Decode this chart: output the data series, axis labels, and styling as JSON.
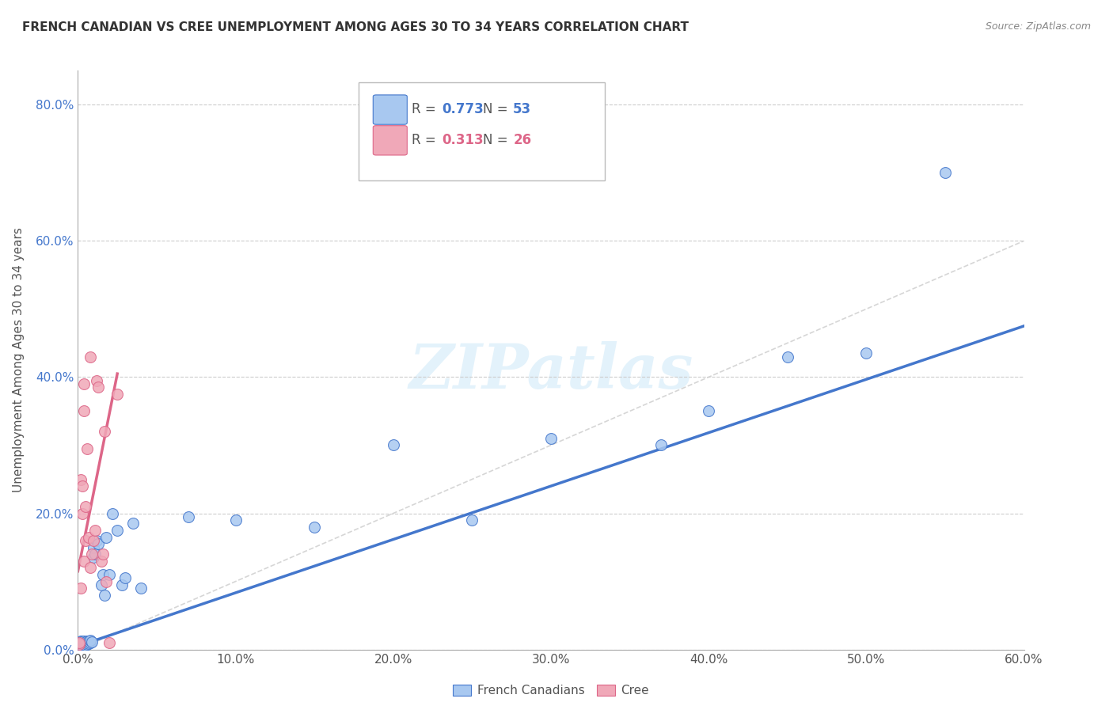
{
  "title": "FRENCH CANADIAN VS CREE UNEMPLOYMENT AMONG AGES 30 TO 34 YEARS CORRELATION CHART",
  "source": "Source: ZipAtlas.com",
  "ylabel": "Unemployment Among Ages 30 to 34 years",
  "watermark": "ZIPatlas",
  "fc_color": "#a8c8f0",
  "cree_color": "#f0a8b8",
  "fc_line_color": "#4477cc",
  "cree_line_color": "#dd6688",
  "diagonal_color": "#cccccc",
  "french_canadians_x": [
    0.001,
    0.001,
    0.001,
    0.002,
    0.002,
    0.002,
    0.002,
    0.003,
    0.003,
    0.003,
    0.003,
    0.004,
    0.004,
    0.004,
    0.004,
    0.005,
    0.005,
    0.005,
    0.006,
    0.006,
    0.006,
    0.007,
    0.007,
    0.008,
    0.008,
    0.009,
    0.01,
    0.01,
    0.011,
    0.012,
    0.013,
    0.015,
    0.016,
    0.017,
    0.018,
    0.02,
    0.022,
    0.025,
    0.028,
    0.03,
    0.035,
    0.04,
    0.07,
    0.1,
    0.15,
    0.2,
    0.25,
    0.3,
    0.37,
    0.4,
    0.45,
    0.5,
    0.55
  ],
  "french_canadians_y": [
    0.005,
    0.008,
    0.01,
    0.005,
    0.008,
    0.01,
    0.012,
    0.005,
    0.008,
    0.01,
    0.012,
    0.006,
    0.008,
    0.01,
    0.012,
    0.007,
    0.009,
    0.011,
    0.008,
    0.01,
    0.012,
    0.009,
    0.012,
    0.01,
    0.014,
    0.011,
    0.135,
    0.15,
    0.14,
    0.16,
    0.155,
    0.095,
    0.11,
    0.08,
    0.165,
    0.11,
    0.2,
    0.175,
    0.095,
    0.105,
    0.185,
    0.09,
    0.195,
    0.19,
    0.18,
    0.3,
    0.19,
    0.31,
    0.3,
    0.35,
    0.43,
    0.435,
    0.7
  ],
  "cree_x": [
    0.001,
    0.001,
    0.002,
    0.002,
    0.003,
    0.003,
    0.004,
    0.004,
    0.004,
    0.005,
    0.005,
    0.006,
    0.007,
    0.008,
    0.008,
    0.009,
    0.01,
    0.011,
    0.012,
    0.013,
    0.015,
    0.016,
    0.017,
    0.018,
    0.02,
    0.025
  ],
  "cree_y": [
    0.008,
    0.01,
    0.09,
    0.25,
    0.2,
    0.24,
    0.13,
    0.35,
    0.39,
    0.16,
    0.21,
    0.295,
    0.165,
    0.12,
    0.43,
    0.14,
    0.16,
    0.175,
    0.395,
    0.385,
    0.13,
    0.14,
    0.32,
    0.1,
    0.01,
    0.375
  ],
  "xlim": [
    0.0,
    0.6
  ],
  "ylim": [
    0.0,
    0.85
  ],
  "fc_trend_x": [
    0.0,
    0.6
  ],
  "fc_trend_y": [
    0.005,
    0.475
  ],
  "cree_trend_x": [
    0.0,
    0.025
  ],
  "cree_trend_y": [
    0.115,
    0.405
  ]
}
